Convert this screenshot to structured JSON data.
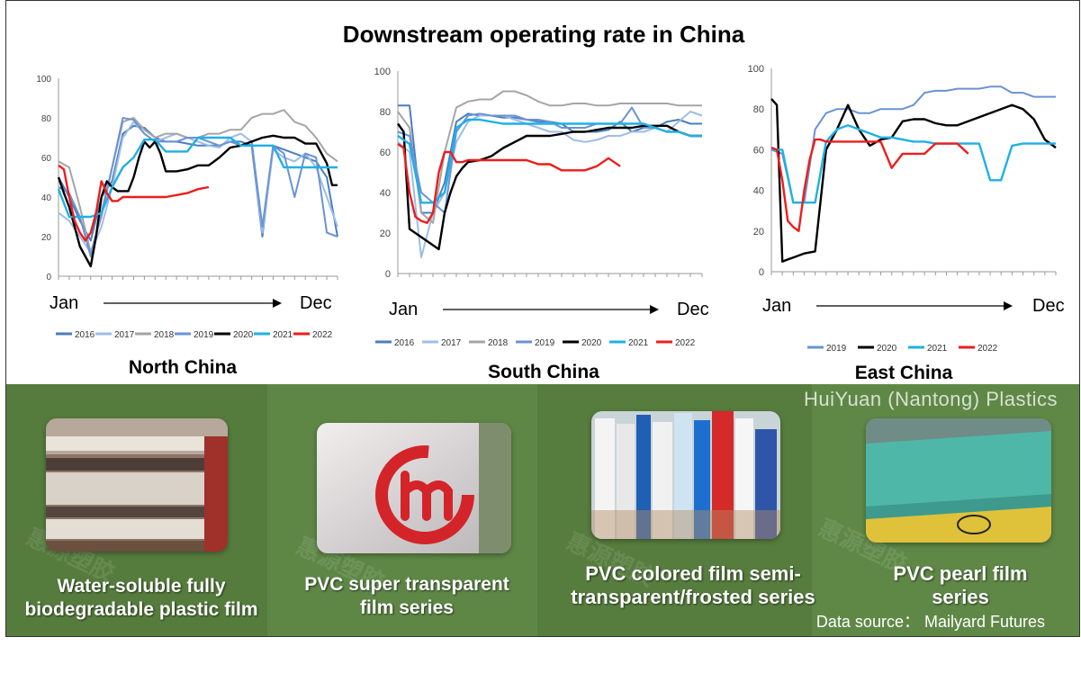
{
  "title": "Downstream operating rate in China",
  "brand": "HuiYuan (Nantong) Plastics",
  "source": "Data source：  Mailyard Futures",
  "colors": {
    "2016": "#4a7ebf",
    "2017": "#9dbde8",
    "2018": "#a5a5a5",
    "2019": "#6a93d4",
    "2020": "#000000",
    "2021": "#1fb0e6",
    "2022": "#ee1c1c"
  },
  "chart_data": [
    {
      "type": "line",
      "title": "North China",
      "ylim": [
        0,
        100
      ],
      "yticks": [
        0,
        20,
        40,
        60,
        80,
        100
      ],
      "xlim": [
        0,
        52
      ],
      "x_start_label": "Jan",
      "x_end_label": "Dec",
      "legend": [
        "2016",
        "2017",
        "2018",
        "2019",
        "2020",
        "2021",
        "2022"
      ],
      "series": [
        {
          "name": "2016",
          "x": [
            0,
            2,
            4,
            6,
            8,
            10,
            12,
            14,
            16,
            18,
            20,
            22,
            24,
            26,
            28,
            30,
            32,
            34,
            36,
            38,
            40,
            42,
            44,
            46,
            48,
            50,
            52
          ],
          "values": [
            50,
            40,
            28,
            18,
            40,
            48,
            72,
            76,
            75,
            70,
            68,
            68,
            67,
            66,
            66,
            66,
            68,
            68,
            66,
            20,
            66,
            64,
            62,
            60,
            58,
            50,
            20
          ]
        },
        {
          "name": "2017",
          "x": [
            0,
            2,
            4,
            6,
            8,
            10,
            12,
            14,
            16,
            18,
            20,
            22,
            24,
            26,
            28,
            30,
            32,
            34,
            36,
            38,
            40,
            42,
            44,
            46,
            48,
            50,
            52
          ],
          "values": [
            32,
            28,
            20,
            12,
            25,
            45,
            70,
            78,
            72,
            68,
            70,
            72,
            70,
            68,
            66,
            65,
            70,
            72,
            68,
            22,
            64,
            60,
            58,
            62,
            55,
            40,
            25
          ]
        },
        {
          "name": "2018",
          "x": [
            0,
            2,
            4,
            6,
            8,
            10,
            12,
            14,
            16,
            18,
            20,
            22,
            24,
            26,
            28,
            30,
            32,
            34,
            36,
            38,
            40,
            42,
            44,
            46,
            48,
            50,
            52
          ],
          "values": [
            58,
            55,
            35,
            12,
            30,
            55,
            78,
            80,
            74,
            70,
            72,
            72,
            70,
            70,
            72,
            72,
            74,
            74,
            80,
            82,
            82,
            84,
            78,
            76,
            70,
            62,
            58
          ]
        },
        {
          "name": "2019",
          "x": [
            0,
            2,
            4,
            6,
            8,
            10,
            12,
            14,
            16,
            18,
            20,
            22,
            24,
            26,
            28,
            30,
            32,
            34,
            36,
            38,
            40,
            42,
            44,
            46,
            48,
            50,
            52
          ],
          "values": [
            45,
            42,
            30,
            10,
            32,
            55,
            80,
            79,
            72,
            68,
            68,
            68,
            70,
            70,
            68,
            66,
            68,
            66,
            68,
            25,
            66,
            62,
            40,
            62,
            60,
            22,
            20
          ]
        },
        {
          "name": "2020",
          "x": [
            0,
            1,
            2,
            3,
            4,
            5,
            6,
            7,
            8,
            9,
            10,
            11,
            12,
            13,
            14,
            15,
            16,
            17,
            18,
            19,
            20,
            22,
            24,
            26,
            28,
            30,
            32,
            34,
            36,
            38,
            40,
            42,
            44,
            46,
            48,
            50,
            51,
            52
          ],
          "values": [
            50,
            42,
            35,
            25,
            15,
            10,
            5,
            20,
            40,
            48,
            45,
            43,
            43,
            43,
            50,
            60,
            68,
            65,
            68,
            62,
            53,
            53,
            54,
            56,
            56,
            60,
            65,
            66,
            68,
            70,
            71,
            70,
            70,
            67,
            67,
            57,
            46,
            46
          ]
        },
        {
          "name": "2021",
          "x": [
            0,
            2,
            4,
            6,
            8,
            10,
            12,
            14,
            16,
            18,
            20,
            22,
            24,
            26,
            28,
            30,
            32,
            34,
            36,
            38,
            40,
            42,
            44,
            46,
            48,
            50,
            52
          ],
          "values": [
            44,
            30,
            30,
            30,
            32,
            45,
            55,
            60,
            69,
            69,
            63,
            63,
            63,
            70,
            70,
            70,
            70,
            66,
            66,
            66,
            66,
            55,
            55,
            55,
            55,
            55,
            55
          ]
        },
        {
          "name": "2022",
          "x": [
            0,
            1,
            2,
            3,
            4,
            5,
            6,
            7,
            8,
            9,
            10,
            11,
            12,
            14,
            16,
            18,
            20,
            22,
            24,
            26,
            28
          ],
          "values": [
            56,
            54,
            40,
            28,
            22,
            18,
            22,
            32,
            48,
            42,
            38,
            38,
            40,
            40,
            40,
            40,
            40,
            41,
            42,
            44,
            45
          ]
        }
      ]
    },
    {
      "type": "line",
      "title": "South China",
      "ylim": [
        0,
        100
      ],
      "yticks": [
        0,
        20,
        40,
        60,
        80,
        100
      ],
      "xlim": [
        0,
        52
      ],
      "x_start_label": "Jan",
      "x_end_label": "Dec",
      "legend": [
        "2016",
        "2017",
        "2018",
        "2019",
        "2020",
        "2021",
        "2022"
      ],
      "series": [
        {
          "name": "2016",
          "x": [
            0,
            2,
            4,
            6,
            8,
            10,
            12,
            14,
            16,
            18,
            20,
            22,
            24,
            26,
            28,
            30,
            32,
            34,
            36,
            38,
            40,
            42,
            44,
            46,
            48,
            50,
            52
          ],
          "values": [
            83,
            83,
            30,
            30,
            45,
            75,
            79,
            78,
            78,
            77,
            77,
            76,
            75,
            75,
            74,
            70,
            70,
            70,
            71,
            75,
            70,
            72,
            72,
            75,
            76,
            74,
            74
          ]
        },
        {
          "name": "2017",
          "x": [
            0,
            2,
            4,
            6,
            8,
            10,
            12,
            14,
            16,
            18,
            20,
            22,
            24,
            26,
            28,
            30,
            32,
            34,
            36,
            38,
            40,
            42,
            44,
            46,
            48,
            50,
            52
          ],
          "values": [
            65,
            60,
            8,
            30,
            40,
            65,
            75,
            78,
            78,
            78,
            76,
            74,
            72,
            70,
            70,
            66,
            65,
            66,
            68,
            68,
            70,
            70,
            72,
            70,
            75,
            80,
            78
          ]
        },
        {
          "name": "2018",
          "x": [
            0,
            2,
            4,
            6,
            8,
            10,
            12,
            14,
            16,
            18,
            20,
            22,
            24,
            26,
            28,
            30,
            32,
            34,
            36,
            38,
            40,
            42,
            44,
            46,
            48,
            50,
            52
          ],
          "values": [
            80,
            72,
            30,
            25,
            60,
            82,
            85,
            86,
            86,
            90,
            90,
            88,
            85,
            83,
            83,
            84,
            84,
            83,
            83,
            84,
            84,
            84,
            84,
            84,
            83,
            83,
            83
          ]
        },
        {
          "name": "2019",
          "x": [
            0,
            2,
            4,
            6,
            8,
            10,
            12,
            14,
            16,
            18,
            20,
            22,
            24,
            26,
            28,
            30,
            32,
            34,
            36,
            38,
            40,
            42,
            44,
            46,
            48,
            50,
            52
          ],
          "values": [
            70,
            68,
            40,
            35,
            30,
            70,
            78,
            79,
            78,
            78,
            78,
            76,
            76,
            75,
            72,
            72,
            72,
            74,
            74,
            74,
            82,
            72,
            72,
            70,
            70,
            68,
            68
          ]
        },
        {
          "name": "2020",
          "x": [
            0,
            1,
            2,
            3,
            4,
            5,
            6,
            7,
            8,
            9,
            10,
            11,
            12,
            14,
            16,
            18,
            20,
            22,
            24,
            26,
            28,
            30,
            32,
            34,
            36,
            38,
            40,
            42,
            44,
            46,
            48,
            50,
            52
          ],
          "values": [
            74,
            70,
            22,
            20,
            18,
            16,
            14,
            12,
            30,
            40,
            48,
            52,
            55,
            56,
            58,
            62,
            65,
            68,
            68,
            68,
            69,
            70,
            70,
            71,
            72,
            72,
            72,
            73,
            73,
            73,
            70,
            68,
            68
          ]
        },
        {
          "name": "2021",
          "x": [
            0,
            2,
            4,
            6,
            8,
            10,
            12,
            14,
            16,
            18,
            20,
            22,
            24,
            26,
            28,
            30,
            32,
            34,
            36,
            38,
            40,
            42,
            44,
            46,
            48,
            50,
            52
          ],
          "values": [
            68,
            64,
            35,
            35,
            40,
            72,
            76,
            76,
            75,
            74,
            74,
            74,
            74,
            74,
            74,
            74,
            74,
            74,
            74,
            74,
            74,
            74,
            72,
            70,
            70,
            68,
            68
          ]
        },
        {
          "name": "2022",
          "x": [
            0,
            1,
            2,
            3,
            4,
            5,
            6,
            7,
            8,
            9,
            10,
            11,
            12,
            14,
            16,
            18,
            20,
            22,
            24,
            26,
            28,
            30,
            32,
            34,
            36,
            38
          ],
          "values": [
            64,
            62,
            40,
            28,
            26,
            25,
            30,
            50,
            60,
            60,
            55,
            55,
            56,
            56,
            56,
            56,
            56,
            56,
            54,
            54,
            51,
            51,
            51,
            53,
            57,
            53
          ]
        }
      ]
    },
    {
      "type": "line",
      "title": "East China",
      "ylim": [
        0,
        100
      ],
      "yticks": [
        0,
        20,
        40,
        60,
        80,
        100
      ],
      "xlim": [
        0,
        52
      ],
      "x_start_label": "Jan",
      "x_end_label": "Dec",
      "legend": [
        "2019",
        "2020",
        "2021",
        "2022"
      ],
      "series": [
        {
          "name": "2019",
          "x": [
            0,
            2,
            4,
            6,
            8,
            10,
            12,
            14,
            16,
            18,
            20,
            22,
            24,
            26,
            28,
            30,
            32,
            34,
            36,
            38,
            40,
            42,
            44,
            46,
            48,
            50,
            52
          ],
          "values": [
            60,
            58,
            34,
            34,
            70,
            78,
            80,
            80,
            78,
            78,
            80,
            80,
            80,
            82,
            88,
            89,
            89,
            90,
            90,
            90,
            91,
            91,
            88,
            88,
            86,
            86,
            86
          ]
        },
        {
          "name": "2020",
          "x": [
            0,
            1,
            2,
            3,
            4,
            6,
            8,
            10,
            12,
            14,
            16,
            18,
            20,
            22,
            24,
            26,
            28,
            30,
            32,
            34,
            36,
            38,
            40,
            42,
            44,
            46,
            48,
            50,
            52
          ],
          "values": [
            85,
            82,
            5,
            6,
            7,
            9,
            10,
            60,
            70,
            82,
            70,
            62,
            65,
            66,
            74,
            75,
            75,
            73,
            72,
            72,
            74,
            76,
            78,
            80,
            82,
            80,
            75,
            65,
            61
          ]
        },
        {
          "name": "2021",
          "x": [
            0,
            2,
            4,
            6,
            8,
            10,
            12,
            14,
            16,
            18,
            20,
            22,
            24,
            26,
            28,
            30,
            32,
            34,
            36,
            38,
            40,
            42,
            44,
            46,
            48,
            50,
            52
          ],
          "values": [
            60,
            60,
            34,
            34,
            34,
            64,
            70,
            72,
            70,
            68,
            66,
            66,
            65,
            64,
            64,
            63,
            63,
            63,
            63,
            63,
            45,
            45,
            62,
            63,
            63,
            63,
            63
          ]
        },
        {
          "name": "2022",
          "x": [
            0,
            1,
            2,
            3,
            4,
            5,
            6,
            7,
            8,
            9,
            10,
            12,
            14,
            16,
            18,
            20,
            22,
            24,
            26,
            28,
            30,
            32,
            34,
            36
          ],
          "values": [
            61,
            60,
            45,
            25,
            22,
            20,
            40,
            55,
            65,
            65,
            64,
            64,
            64,
            64,
            64,
            64,
            51,
            58,
            58,
            58,
            63,
            63,
            63,
            58
          ]
        }
      ]
    }
  ],
  "panels": [
    {
      "caption_l1": "Water-soluble fully",
      "caption_l2": "biodegradable plastic film"
    },
    {
      "caption_l1": "PVC super transparent",
      "caption_l2": "film series"
    },
    {
      "caption_l1": "PVC colored film semi-",
      "caption_l2": "transparent/frosted series"
    },
    {
      "caption_l1": "PVC pearl film",
      "caption_l2": "series"
    }
  ]
}
